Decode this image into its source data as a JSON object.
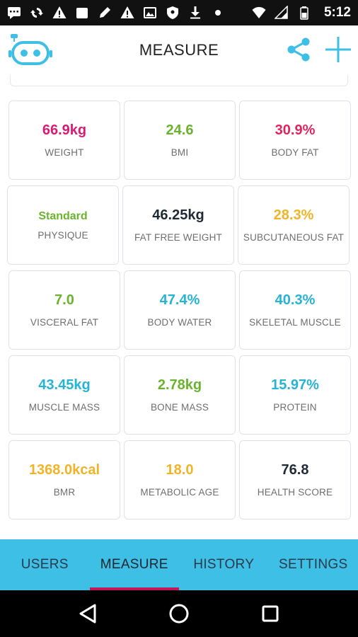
{
  "status_bar": {
    "time": "5:12",
    "left_icons": [
      "message-icon",
      "sync-icon",
      "warning-icon",
      "bag-icon",
      "edit-icon",
      "warning-icon",
      "image-icon",
      "shield-icon",
      "download-icon",
      "dot-icon"
    ],
    "right_icons": [
      "wifi-icon",
      "signal-icon",
      "battery-icon"
    ]
  },
  "app_bar": {
    "title": "MEASURE",
    "accent_color": "#3DBFE6"
  },
  "tiles": [
    {
      "value": "66.9kg",
      "label": "WEIGHT",
      "color": "#D81B73"
    },
    {
      "value": "24.6",
      "label": "BMI",
      "color": "#6AB42D"
    },
    {
      "value": "30.9%",
      "label": "BODY FAT",
      "color": "#E0245E"
    },
    {
      "value": "Standard",
      "label": "PHYSIQUE",
      "color": "#6AB42D"
    },
    {
      "value": "46.25kg",
      "label": "FAT FREE WEIGHT",
      "color": "#1E2A36"
    },
    {
      "value": "28.3%",
      "label": "SUBCUTANEOUS FAT",
      "color": "#F0B429"
    },
    {
      "value": "7.0",
      "label": "VISCERAL FAT",
      "color": "#6AB42D"
    },
    {
      "value": "47.4%",
      "label": "BODY WATER",
      "color": "#27B3D3"
    },
    {
      "value": "40.3%",
      "label": "SKELETAL MUSCLE",
      "color": "#27B3D3"
    },
    {
      "value": "43.45kg",
      "label": "MUSCLE MASS",
      "color": "#27B3D3"
    },
    {
      "value": "2.78kg",
      "label": "BONE MASS",
      "color": "#6AB42D"
    },
    {
      "value": "15.97%",
      "label": "PROTEIN",
      "color": "#27B3D3"
    },
    {
      "value": "1368.0kcal",
      "label": "BMR",
      "color": "#F0B429"
    },
    {
      "value": "18.0",
      "label": "METABOLIC AGE",
      "color": "#F0B429"
    },
    {
      "value": "76.8",
      "label": "HEALTH SCORE",
      "color": "#1E2A36"
    }
  ],
  "bottom_nav": {
    "items": [
      {
        "label": "USERS",
        "active": false
      },
      {
        "label": "MEASURE",
        "active": true
      },
      {
        "label": "HISTORY",
        "active": false
      },
      {
        "label": "SETTINGS",
        "active": false
      }
    ],
    "background": "#3DBFE6",
    "active_indicator": "#C2185B"
  },
  "system_nav": [
    "back-icon",
    "home-icon",
    "recents-icon"
  ]
}
